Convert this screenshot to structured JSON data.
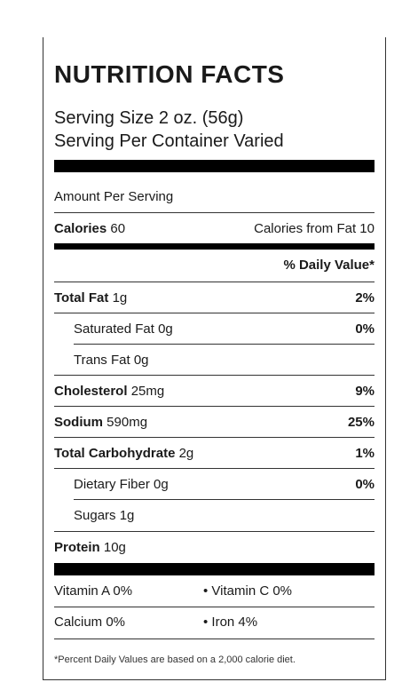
{
  "title": "NUTRITION FACTS",
  "serving_size": "Serving Size 2 oz. (56g)",
  "serving_per_container": "Serving Per Container Varied",
  "amount_per_serving": "Amount Per Serving",
  "calories": {
    "label": "Calories",
    "value": "60",
    "from_fat": "Calories from Fat 10"
  },
  "daily_value_header": "% Daily Value*",
  "nutrients": [
    {
      "label": "Total Fat",
      "amount": "1g",
      "pct": "2%"
    },
    {
      "label": "Saturated Fat",
      "amount": "0g",
      "pct": "0%"
    },
    {
      "label": "Trans Fat",
      "amount": "0g",
      "pct": ""
    },
    {
      "label": "Cholesterol",
      "amount": "25mg",
      "pct": "9%"
    },
    {
      "label": "Sodium",
      "amount": "590mg",
      "pct": "25%"
    },
    {
      "label": "Total Carbohydrate",
      "amount": "2g",
      "pct": "1%"
    },
    {
      "label": "Dietary Fiber",
      "amount": "0g",
      "pct": "0%"
    },
    {
      "label": "Sugars",
      "amount": "1g",
      "pct": ""
    },
    {
      "label": "Protein",
      "amount": "10g",
      "pct": ""
    }
  ],
  "vitamins": {
    "vitamin_a": "Vitamin A 0%",
    "vitamin_c": "• Vitamin C 0%",
    "calcium": "Calcium 0%",
    "iron": "• Iron 4%"
  },
  "footnote": "*Percent Daily Values are based on a 2,000 calorie diet."
}
